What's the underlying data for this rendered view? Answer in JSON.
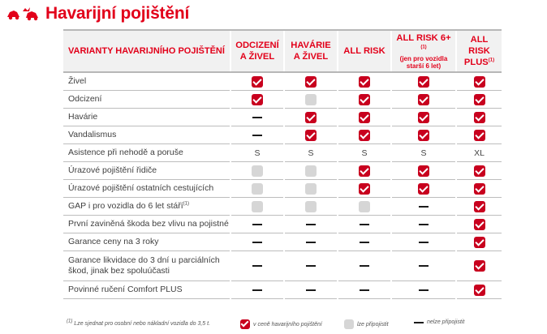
{
  "header": {
    "title": "Havarijní pojištění",
    "icon": "car-crash-icon"
  },
  "table": {
    "columns": [
      {
        "label": "VARIANTY HAVARIJNÍHO POJIŠTĚNÍ"
      },
      {
        "label": "ODCIZENÍ A ŽIVEL"
      },
      {
        "label": "HAVÁRIE A ŽIVEL"
      },
      {
        "label": "ALL RISK"
      },
      {
        "label": "ALL RISK 6+",
        "sup": "(1)",
        "sub": "(jen pro vozidla starší 6 let)"
      },
      {
        "label": "ALL RISK PLUS",
        "sup": "(1)"
      }
    ],
    "rows": [
      {
        "label": "Živel",
        "cells": [
          "check",
          "check",
          "check",
          "check",
          "check"
        ]
      },
      {
        "label": "Odcizení",
        "cells": [
          "check",
          "gray",
          "check",
          "check",
          "check"
        ]
      },
      {
        "label": "Havárie",
        "cells": [
          "dash",
          "check",
          "check",
          "check",
          "check"
        ]
      },
      {
        "label": "Vandalismus",
        "cells": [
          "dash",
          "check",
          "check",
          "check",
          "check"
        ]
      },
      {
        "label": "Asistence při nehodě a poruše",
        "cells": [
          "S",
          "S",
          "S",
          "S",
          "XL"
        ]
      },
      {
        "label": "Úrazové pojištění řidiče",
        "cells": [
          "gray",
          "gray",
          "check",
          "check",
          "check"
        ]
      },
      {
        "label": "Úrazové pojištění ostatních cestujících",
        "cells": [
          "gray",
          "gray",
          "check",
          "check",
          "check"
        ]
      },
      {
        "label": "GAP i pro vozidla do 6 let stáří",
        "sup": "(1)",
        "cells": [
          "gray",
          "gray",
          "gray",
          "dash",
          "check"
        ]
      },
      {
        "label": "První zaviněná škoda bez vlivu na pojistné",
        "cells": [
          "dash",
          "dash",
          "dash",
          "dash",
          "check"
        ]
      },
      {
        "label": "Garance ceny na 3 roky",
        "cells": [
          "dash",
          "dash",
          "dash",
          "dash",
          "check"
        ]
      },
      {
        "label": "Garance likvidace do 3 dní u parciálních škod, jinak bez spoluúčasti",
        "cells": [
          "dash",
          "dash",
          "dash",
          "dash",
          "check"
        ]
      },
      {
        "label": "Povinné ručení Comfort PLUS",
        "cells": [
          "dash",
          "dash",
          "dash",
          "dash",
          "check"
        ]
      }
    ]
  },
  "footer": {
    "footnote_mark": "(1)",
    "footnote": "Lze sjednat pro osobní nebo nákladní vozidla do 3,5 t.",
    "legend": [
      {
        "type": "check",
        "label": "v ceně havarijního pojištění"
      },
      {
        "type": "gray",
        "label": "lze připojistit"
      },
      {
        "type": "dash",
        "label": "nelze připojistit"
      }
    ]
  },
  "colors": {
    "accent": "#e2001a",
    "check": "#c8001e",
    "gray": "#d6d6d6"
  }
}
